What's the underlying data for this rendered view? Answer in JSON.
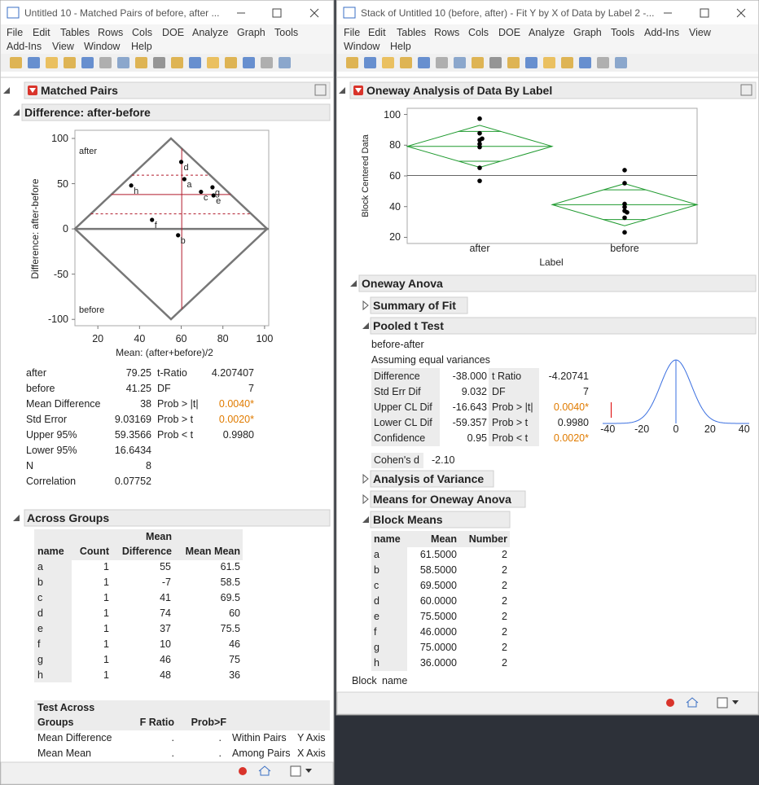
{
  "left_window": {
    "title": "Untitled 10 - Matched Pairs of before, after ...",
    "menu": [
      "File",
      "Edit",
      "Tables",
      "Rows",
      "Cols",
      "DOE",
      "Analyze",
      "Graph",
      "Tools",
      "Add-Ins",
      "View",
      "Window",
      "Help"
    ],
    "report_title": "Matched Pairs",
    "outline_title": "Difference: after-before",
    "chart_data": {
      "type": "scatter",
      "x_label": "Mean: (after+before)/2",
      "y_label": "Difference: after-before",
      "region_labels": [
        "after",
        "before"
      ],
      "xlim": [
        9,
        102
      ],
      "ylim": [
        -107,
        109
      ],
      "xticks": [
        20,
        40,
        60,
        80,
        100
      ],
      "yticks": [
        100,
        50,
        0,
        -50,
        -100
      ],
      "mean_of_means": 60.25
    },
    "stats": {
      "rows": [
        [
          "after",
          79.25
        ],
        [
          "before",
          41.25
        ],
        [
          "Mean Difference",
          38
        ],
        [
          "Std Error",
          9.03169
        ],
        [
          "Upper 95%",
          59.3566
        ],
        [
          "Lower 95%",
          16.6434
        ],
        [
          "N",
          8
        ],
        [
          "Correlation",
          0.07752
        ]
      ],
      "tests": [
        [
          "t-Ratio",
          4.207407
        ],
        [
          "DF",
          7
        ],
        [
          "Prob > |t|",
          "0.0040*"
        ],
        [
          "Prob > t",
          "0.0020*"
        ],
        [
          "Prob < t",
          "0.9980"
        ]
      ]
    },
    "across_groups": {
      "title": "Across Groups",
      "header": [
        "name",
        "Count",
        "Mean Difference",
        "Mean Mean"
      ],
      "rows": [
        [
          "a",
          1,
          55,
          61.5
        ],
        [
          "b",
          1,
          -7,
          58.5
        ],
        [
          "c",
          1,
          41,
          69.5
        ],
        [
          "d",
          1,
          74,
          60
        ],
        [
          "e",
          1,
          37,
          75.5
        ],
        [
          "f",
          1,
          10,
          46
        ],
        [
          "g",
          1,
          46,
          75
        ],
        [
          "h",
          1,
          48,
          36
        ]
      ]
    },
    "test_across_groups": {
      "header": [
        "Test Across Groups",
        "F Ratio",
        "Prob>F"
      ],
      "rows": [
        [
          "Mean Difference",
          ".",
          ".",
          "Within Pairs",
          "Y Axis"
        ],
        [
          "Mean Mean",
          ".",
          ".",
          "Among Pairs",
          "X Axis"
        ]
      ]
    }
  },
  "right_window": {
    "title": "Stack of Untitled 10 (before, after) - Fit Y by X of Data by Label 2 -...",
    "menu": [
      "File",
      "Edit",
      "Tables",
      "Rows",
      "Cols",
      "DOE",
      "Analyze",
      "Graph",
      "Tools",
      "Add-Ins",
      "View",
      "Window",
      "Help"
    ],
    "report_title": "Oneway Analysis of Data By Label",
    "chart_data": {
      "type": "strip",
      "x_label": "Label",
      "y_label": "Block Centered Data",
      "categories": [
        "after",
        "before"
      ],
      "groups": [
        [
          87.75,
          56.75,
          80.75,
          97.25,
          78.75,
          65.25,
          83.25,
          84.25
        ],
        [
          32.75,
          63.75,
          39.75,
          23.25,
          41.75,
          55.25,
          37.25,
          36.25
        ]
      ],
      "ylim": [
        16,
        104
      ],
      "yticks": [
        20,
        40,
        60,
        80,
        100
      ],
      "grand_mean": 60.25,
      "diamonds": [
        {
          "mean": 79.25,
          "lower": 65.55,
          "upper": 92.95
        },
        {
          "mean": 41.25,
          "lower": 27.55,
          "upper": 54.95
        }
      ]
    },
    "oneway_anova": "Oneway Anova",
    "sections": [
      "Summary of Fit",
      "Pooled t Test",
      "Analysis of Variance",
      "Means for Oneway Anova",
      "Block Means"
    ],
    "pooled_t": {
      "subtitle": "before-after",
      "note": "Assuming equal variances",
      "rows": [
        [
          "Difference",
          "-38.000",
          "t Ratio",
          "-4.20741"
        ],
        [
          "Std Err Dif",
          "9.032",
          "DF",
          "7"
        ],
        [
          "Upper CL Dif",
          "-16.643",
          "Prob > |t|",
          "0.0040*"
        ],
        [
          "Lower CL Dif",
          "-59.357",
          "Prob > t",
          "0.9980"
        ],
        [
          "Confidence",
          "0.95",
          "Prob < t",
          "0.0020*"
        ]
      ],
      "cohens_d": [
        "Cohen's d",
        "-2.10"
      ],
      "t_plot": {
        "xlim": [
          -43,
          43
        ],
        "xticks": [
          -40,
          -20,
          0,
          20,
          40
        ]
      }
    },
    "block_means": {
      "header": [
        "name",
        "Mean",
        "Number"
      ],
      "rows": [
        [
          "a",
          "61.5000",
          2
        ],
        [
          "b",
          "58.5000",
          2
        ],
        [
          "c",
          "69.5000",
          2
        ],
        [
          "d",
          "60.0000",
          2
        ],
        [
          "e",
          "75.5000",
          2
        ],
        [
          "f",
          "46.0000",
          2
        ],
        [
          "g",
          "75.0000",
          2
        ],
        [
          "h",
          "36.0000",
          2
        ]
      ]
    },
    "footer": [
      "Block",
      "name"
    ]
  }
}
